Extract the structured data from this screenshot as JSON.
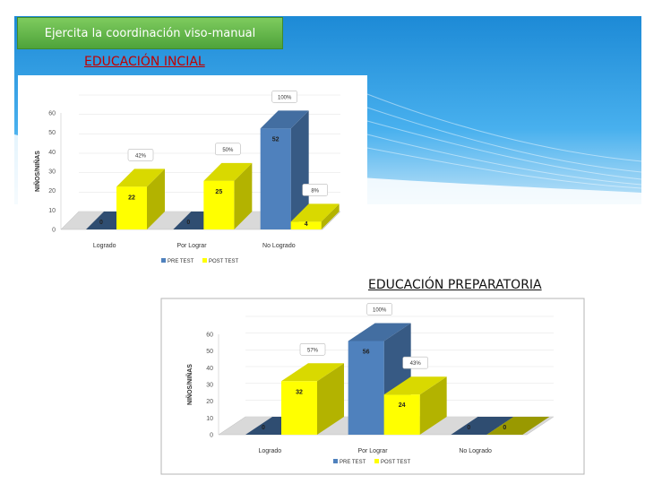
{
  "header": {
    "title": "Ejercita la coordinación viso-manual"
  },
  "sections": {
    "inicial": "EDUCACIÓN INCIAL",
    "preparatoria": "EDUCACIÓN  PREPARATORIA"
  },
  "colors": {
    "pre": "#4f81bd",
    "post": "#ffff00",
    "header_green": "#5fb347",
    "sky_blue": "#2d9be0"
  },
  "chart_data": [
    {
      "type": "bar",
      "categories": [
        "Logrado",
        "Por Lograr",
        "No Logrado"
      ],
      "series": [
        {
          "name": "PRE TEST",
          "values": [
            0,
            0,
            52
          ]
        },
        {
          "name": "POST TEST",
          "values": [
            22,
            25,
            4
          ]
        }
      ],
      "value_labels": {
        "PRE TEST": [
          "0",
          "0",
          "52"
        ],
        "POST TEST": [
          "22",
          "25",
          "4"
        ]
      },
      "percent_labels": {
        "PRE TEST": [
          "",
          "",
          "100%"
        ],
        "POST TEST": [
          "42%",
          "50%",
          "8%"
        ]
      },
      "ylabel": "NIÑOS/NIÑAS",
      "yticks": [
        "0",
        "10",
        "20",
        "30",
        "40",
        "50",
        "60"
      ],
      "ylim": [
        0,
        60
      ],
      "legend": "bottom"
    },
    {
      "type": "bar",
      "categories": [
        "Logrado",
        "Por Lograr",
        "No Logrado"
      ],
      "series": [
        {
          "name": "PRE TEST",
          "values": [
            0,
            56,
            0
          ]
        },
        {
          "name": "POST TEST",
          "values": [
            32,
            24,
            0
          ]
        }
      ],
      "value_labels": {
        "PRE TEST": [
          "0",
          "56",
          "0"
        ],
        "POST TEST": [
          "32",
          "24",
          "0"
        ]
      },
      "percent_labels": {
        "PRE TEST": [
          "",
          "100%",
          ""
        ],
        "POST TEST": [
          "57%",
          "43%",
          ""
        ]
      },
      "ylabel": "NIÑOS/NIÑAS",
      "yticks": [
        "0",
        "10",
        "20",
        "30",
        "40",
        "50",
        "60"
      ],
      "ylim": [
        0,
        60
      ],
      "legend": "bottom"
    }
  ]
}
